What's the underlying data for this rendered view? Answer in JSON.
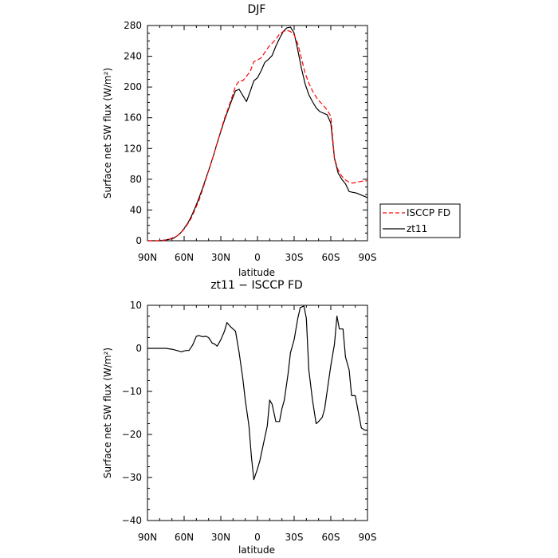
{
  "chart_data": [
    {
      "type": "line",
      "title": "DJF",
      "xlabel": "latitude",
      "ylabel": "Surface net SW flux (W/m²)",
      "xlim": [
        -90,
        90
      ],
      "ylim": [
        0,
        280
      ],
      "x_tick_values": [
        -90,
        -60,
        -30,
        0,
        30,
        60,
        90
      ],
      "x_tick_labels": [
        "90N",
        "60N",
        "30N",
        "0",
        "30S",
        "60S",
        "90S"
      ],
      "y_tick_values": [
        0,
        40,
        80,
        120,
        160,
        200,
        240,
        280
      ],
      "y_tick_labels": [
        "0",
        "40",
        "80",
        "120",
        "160",
        "200",
        "240",
        "280"
      ],
      "grid": false,
      "legend_position": "right",
      "series": [
        {
          "name": "zt11",
          "color": "#000000",
          "dash": "solid",
          "x": [
            -90,
            -80,
            -75,
            -72,
            -69,
            -66,
            -63,
            -60,
            -57,
            -54,
            -51,
            -48,
            -45,
            -42,
            -39,
            -36,
            -33,
            -30,
            -27,
            -24,
            -21,
            -18,
            -15,
            -12,
            -9,
            -6,
            -3,
            0,
            3,
            6,
            9,
            12,
            15,
            18,
            21,
            24,
            27,
            30,
            33,
            36,
            39,
            42,
            45,
            48,
            51,
            54,
            57,
            60,
            63,
            66,
            69,
            72,
            75,
            78,
            81,
            84,
            87,
            90
          ],
          "y": [
            0,
            0,
            1,
            2,
            3,
            6,
            10,
            16,
            23,
            32,
            43,
            55,
            68,
            82,
            96,
            111,
            127,
            142,
            157,
            170,
            183,
            195,
            197,
            189,
            181,
            194,
            208,
            212,
            221,
            232,
            236,
            241,
            253,
            263,
            272,
            277,
            278,
            270,
            248,
            224,
            204,
            190,
            181,
            173,
            168,
            166,
            164,
            153,
            107,
            88,
            80,
            74,
            64,
            63,
            62,
            60,
            58,
            56
          ]
        },
        {
          "name": "ISCCP FD",
          "color": "#ff0000",
          "dash": "dashed",
          "x": [
            -90,
            -80,
            -75,
            -72,
            -69,
            -66,
            -63,
            -60,
            -57,
            -54,
            -51,
            -48,
            -45,
            -42,
            -39,
            -36,
            -33,
            -30,
            -27,
            -24,
            -21,
            -18,
            -15,
            -12,
            -9,
            -6,
            -3,
            0,
            3,
            6,
            9,
            12,
            15,
            18,
            21,
            24,
            27,
            30,
            33,
            36,
            39,
            42,
            45,
            48,
            51,
            54,
            57,
            60,
            63,
            66,
            69,
            72,
            75,
            78,
            81,
            84,
            87,
            90
          ],
          "y": [
            0,
            0,
            1,
            2,
            4,
            6,
            10,
            15,
            22,
            30,
            41,
            52,
            66,
            81,
            96,
            111,
            127,
            143,
            159,
            172,
            186,
            201,
            208,
            208,
            214,
            220,
            233,
            235,
            238,
            245,
            252,
            257,
            262,
            269,
            272,
            274,
            272,
            268,
            256,
            237,
            218,
            205,
            195,
            187,
            181,
            176,
            170,
            162,
            107,
            92,
            84,
            79,
            76,
            75,
            76,
            77,
            78,
            78
          ]
        }
      ]
    },
    {
      "type": "line",
      "title": "zt11 − ISCCP FD",
      "xlabel": "latitude",
      "ylabel": "Surface net SW flux (W/m²)",
      "xlim": [
        -90,
        90
      ],
      "ylim": [
        -40,
        10
      ],
      "x_tick_values": [
        -90,
        -60,
        -30,
        0,
        30,
        60,
        90
      ],
      "x_tick_labels": [
        "90N",
        "60N",
        "30N",
        "0",
        "30S",
        "60S",
        "90S"
      ],
      "y_tick_values": [
        -40,
        -30,
        -20,
        -10,
        0,
        10
      ],
      "y_tick_labels": [
        "−40",
        "−30",
        "−20",
        "−10",
        "0",
        "10"
      ],
      "grid": false,
      "series": [
        {
          "name": "",
          "color": "#000000",
          "dash": "solid",
          "x": [
            -90,
            -75,
            -70,
            -66,
            -62,
            -60,
            -58,
            -56,
            -53,
            -50,
            -48,
            -45,
            -42,
            -40,
            -37,
            -35,
            -33,
            -30,
            -27,
            -25,
            -22,
            -20,
            -18,
            -15,
            -12,
            -10,
            -7,
            -5,
            -3,
            0,
            2,
            5,
            8,
            10,
            12,
            15,
            18,
            20,
            22,
            25,
            27,
            30,
            33,
            35,
            38,
            40,
            42,
            45,
            48,
            50,
            53,
            55,
            58,
            60,
            63,
            65,
            67,
            70,
            72,
            75,
            77,
            80,
            82,
            85,
            88,
            90
          ],
          "y": [
            0,
            0,
            -0.2,
            -0.5,
            -0.8,
            -0.6,
            -0.5,
            -0.5,
            0.8,
            2.8,
            3.0,
            2.7,
            2.8,
            2.5,
            1.2,
            1.0,
            0.5,
            2,
            4,
            6,
            5,
            4.5,
            4,
            -1,
            -7,
            -12,
            -18,
            -25,
            -30.5,
            -28,
            -26,
            -22,
            -18,
            -12,
            -13,
            -17,
            -17,
            -14,
            -12,
            -6,
            -1,
            2,
            7,
            9.5,
            9.8,
            7,
            -5,
            -12,
            -17.5,
            -17,
            -16,
            -14,
            -8,
            -4,
            1,
            7.5,
            4.5,
            4.5,
            -2,
            -5,
            -11,
            -11,
            -14,
            -18.5,
            -19,
            -19
          ]
        }
      ]
    }
  ]
}
